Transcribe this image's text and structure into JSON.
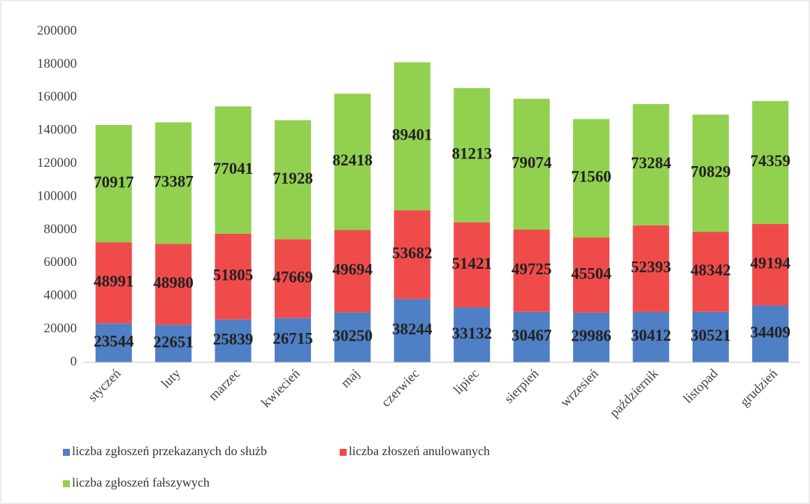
{
  "chart_data": {
    "type": "stacked_bar",
    "categories": [
      "styczeń",
      "luty",
      "marzec",
      "kwiecień",
      "maj",
      "czerwiec",
      "lipiec",
      "sierpień",
      "wrzesień",
      "październik",
      "listopad",
      "grudzień"
    ],
    "series": [
      {
        "name": "liczba zgłoszeń przekazanych do służb",
        "color": "#4f7fc4",
        "values": [
          23544,
          22651,
          25839,
          26715,
          30250,
          38244,
          33132,
          30467,
          29986,
          30412,
          30521,
          34409
        ]
      },
      {
        "name": "liczba złoszeń anulowanych",
        "color": "#f04b4b",
        "values": [
          48991,
          48980,
          51805,
          47669,
          49694,
          53682,
          51421,
          49725,
          45504,
          52393,
          48342,
          49194
        ]
      },
      {
        "name": "liczba zgłoszeń fałszywych",
        "color": "#92d050",
        "values": [
          70917,
          73387,
          77041,
          71928,
          82418,
          89401,
          81213,
          79074,
          71560,
          73284,
          70829,
          74359
        ]
      }
    ],
    "ylim": [
      0,
      200000
    ],
    "yticks": [
      0,
      20000,
      40000,
      60000,
      80000,
      100000,
      120000,
      140000,
      160000,
      180000,
      200000
    ],
    "legend": "bottom"
  }
}
